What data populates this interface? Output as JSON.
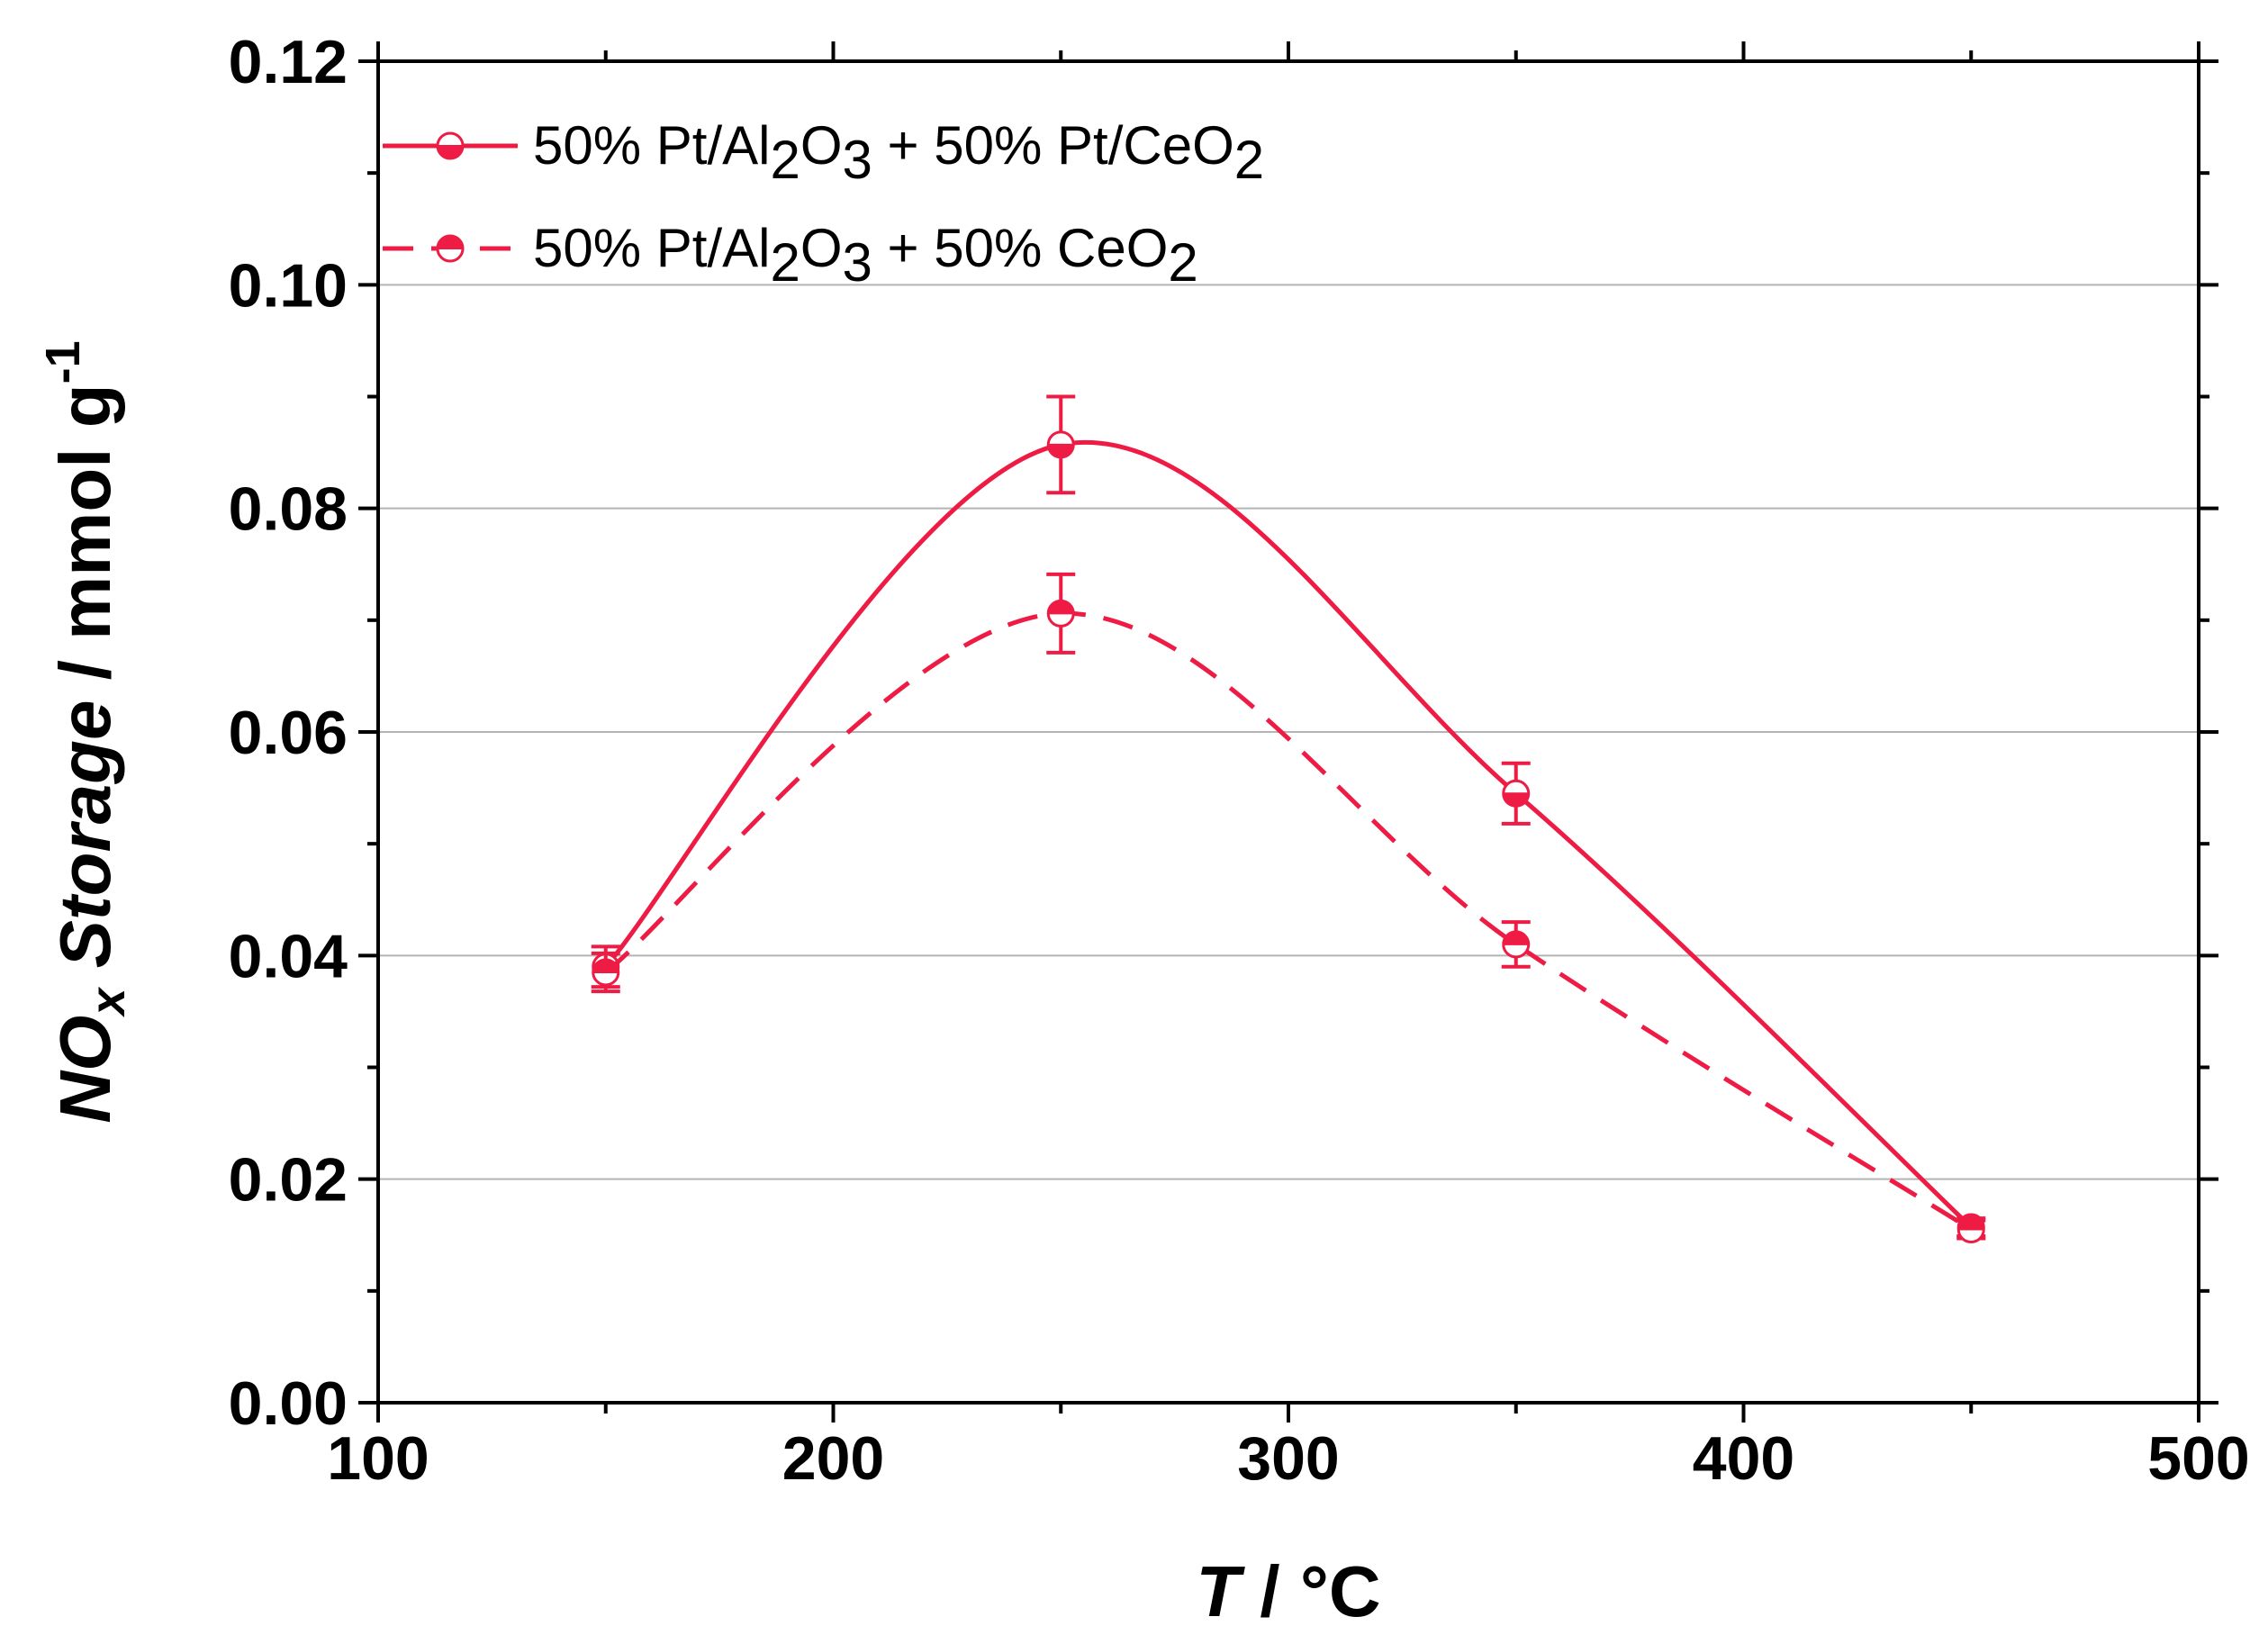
{
  "chart_data": {
    "type": "line",
    "title": "",
    "xlabel": {
      "italic": "T",
      "rest": " / °C"
    },
    "ylabel": {
      "prefix": "NO",
      "sub": "x",
      "italic": " Storage",
      "rest": " / mmol g",
      "sup": "-1"
    },
    "xlim": [
      100,
      500
    ],
    "ylim": [
      0.0,
      0.12
    ],
    "x_ticks": [
      100,
      200,
      300,
      400,
      500
    ],
    "x_tick_labels": [
      "100",
      "200",
      "300",
      "400",
      "500"
    ],
    "y_ticks": [
      0.0,
      0.02,
      0.04,
      0.06,
      0.08,
      0.1,
      0.12
    ],
    "y_tick_labels": [
      "0.00",
      "0.02",
      "0.04",
      "0.06",
      "0.08",
      "0.10",
      "0.12"
    ],
    "grid": {
      "horizontal": true,
      "vertical": false
    },
    "legend": "top-left",
    "series": [
      {
        "name": "50% Pt/Al2O3 + 50% Pt/CeO2",
        "legend_parts": [
          {
            "t": "50% Pt/Al"
          },
          {
            "t": "2",
            "sub": true
          },
          {
            "t": "O"
          },
          {
            "t": "3",
            "sub": true
          },
          {
            "t": " + 50% Pt/CeO"
          },
          {
            "t": "2",
            "sub": true
          }
        ],
        "line_style": "solid",
        "marker": "circle-half-bottom-filled",
        "color": "#ee1c44",
        "x": [
          150,
          250,
          350,
          450
        ],
        "y": [
          0.039,
          0.0857,
          0.0545,
          0.0157
        ],
        "yerr": [
          0.0018,
          0.0043,
          0.0027,
          0.0008
        ]
      },
      {
        "name": "50% Pt/Al2O3 + 50% CeO2",
        "legend_parts": [
          {
            "t": "50% Pt/Al"
          },
          {
            "t": "2",
            "sub": true
          },
          {
            "t": "O"
          },
          {
            "t": "3",
            "sub": true
          },
          {
            "t": " + 50% CeO"
          },
          {
            "t": "2",
            "sub": true
          }
        ],
        "line_style": "dashed",
        "marker": "circle-half-top-filled",
        "color": "#ee1c44",
        "x": [
          150,
          250,
          350,
          450
        ],
        "y": [
          0.0385,
          0.0706,
          0.041,
          0.0155
        ],
        "yerr": [
          0.0017,
          0.0035,
          0.002,
          0.0008
        ]
      }
    ]
  }
}
